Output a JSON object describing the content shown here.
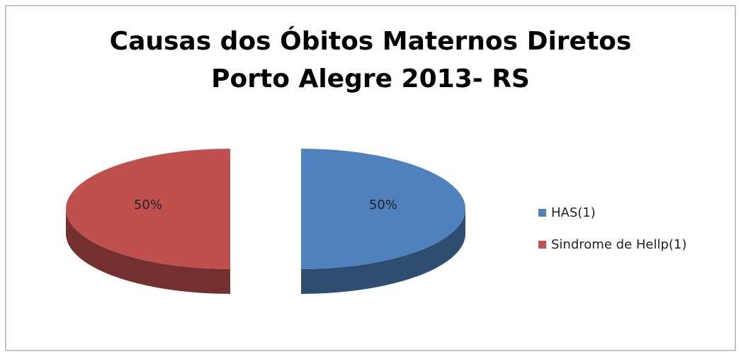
{
  "chart_data": {
    "type": "pie",
    "title": [
      "Causas dos Óbitos Maternos Diretos",
      "Porto Alegre 2013- RS"
    ],
    "categories": [
      "HAS(1)",
      "Sindrome de Hellp(1)"
    ],
    "values": [
      50,
      50
    ],
    "value_labels": [
      "50%",
      "50%"
    ],
    "colors": [
      "#4f81bd",
      "#c0504d"
    ],
    "legend": "right"
  }
}
